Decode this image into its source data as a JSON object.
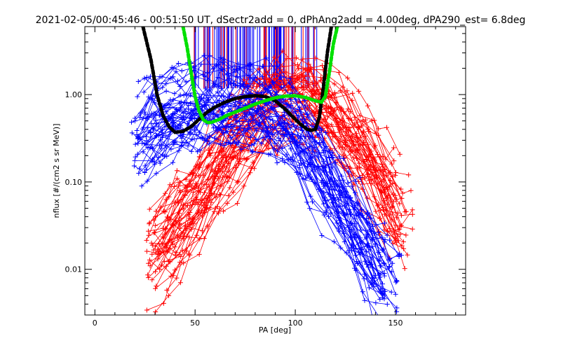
{
  "chart_data": {
    "type": "line",
    "title": "2021-02-05/00:45:46 - 00:51:50 UT, dSectr2add = 0, dPhAng2add = 4.00deg, dPA290_est=    6.8deg",
    "xlabel": "PA [deg]",
    "ylabel": "nflux [#/(cm2 s sr MeV)]",
    "xlim": [
      -5,
      185
    ],
    "ylim": [
      0.003,
      6
    ],
    "yscale": "log",
    "x_ticks": [
      0,
      50,
      100,
      150
    ],
    "x_tick_labels": [
      "0",
      "50",
      "100",
      "150"
    ],
    "y_ticks": [
      0.01,
      0.1,
      1.0
    ],
    "y_tick_labels": [
      "0.01",
      "0.10",
      "1.00"
    ],
    "grid": false,
    "colors": {
      "red": "#ff0000",
      "blue": "#0000ff",
      "black": "#000000",
      "green": "#00e000"
    },
    "series": [
      {
        "color": "black",
        "style": "thick-dashed",
        "x": [
          24,
          28,
          31,
          34,
          37,
          40,
          44,
          48,
          52,
          56,
          60,
          65,
          70,
          75,
          80,
          85,
          90,
          95,
          100,
          103,
          106,
          108,
          110,
          112,
          114,
          116,
          118
        ],
        "y": [
          6.0,
          2.5,
          1.0,
          0.58,
          0.43,
          0.37,
          0.38,
          0.43,
          0.52,
          0.63,
          0.72,
          0.82,
          0.9,
          0.95,
          0.97,
          0.95,
          0.85,
          0.68,
          0.52,
          0.45,
          0.4,
          0.39,
          0.4,
          0.55,
          1.2,
          3.0,
          6.0
        ]
      },
      {
        "color": "green",
        "style": "thick-dashed",
        "x": [
          44,
          46,
          48,
          50,
          52,
          54,
          56,
          58,
          62,
          66,
          70,
          75,
          80,
          85,
          90,
          95,
          100,
          105,
          110,
          113,
          115,
          117,
          119,
          121
        ],
        "y": [
          6.0,
          3.5,
          1.8,
          0.95,
          0.65,
          0.52,
          0.48,
          0.48,
          0.52,
          0.58,
          0.63,
          0.7,
          0.78,
          0.85,
          0.92,
          0.96,
          0.97,
          0.93,
          0.85,
          0.82,
          0.95,
          1.8,
          3.8,
          6.0
        ]
      },
      {
        "color": "red",
        "style": "bundle",
        "x": [
          25,
          40,
          55,
          70,
          80,
          90,
          100,
          110,
          120,
          130,
          140,
          150,
          160
        ],
        "y": [
          0.012,
          0.03,
          0.09,
          0.3,
          0.6,
          0.85,
          1.0,
          0.9,
          0.55,
          0.3,
          0.12,
          0.05,
          0.025
        ]
      },
      {
        "color": "blue",
        "style": "bundle",
        "x": [
          18,
          30,
          45,
          60,
          75,
          85,
          95,
          105,
          115,
          125,
          135,
          145,
          155
        ],
        "y": [
          0.3,
          0.5,
          0.75,
          0.9,
          0.85,
          0.75,
          0.55,
          0.3,
          0.12,
          0.05,
          0.02,
          0.009,
          0.005
        ]
      }
    ]
  }
}
